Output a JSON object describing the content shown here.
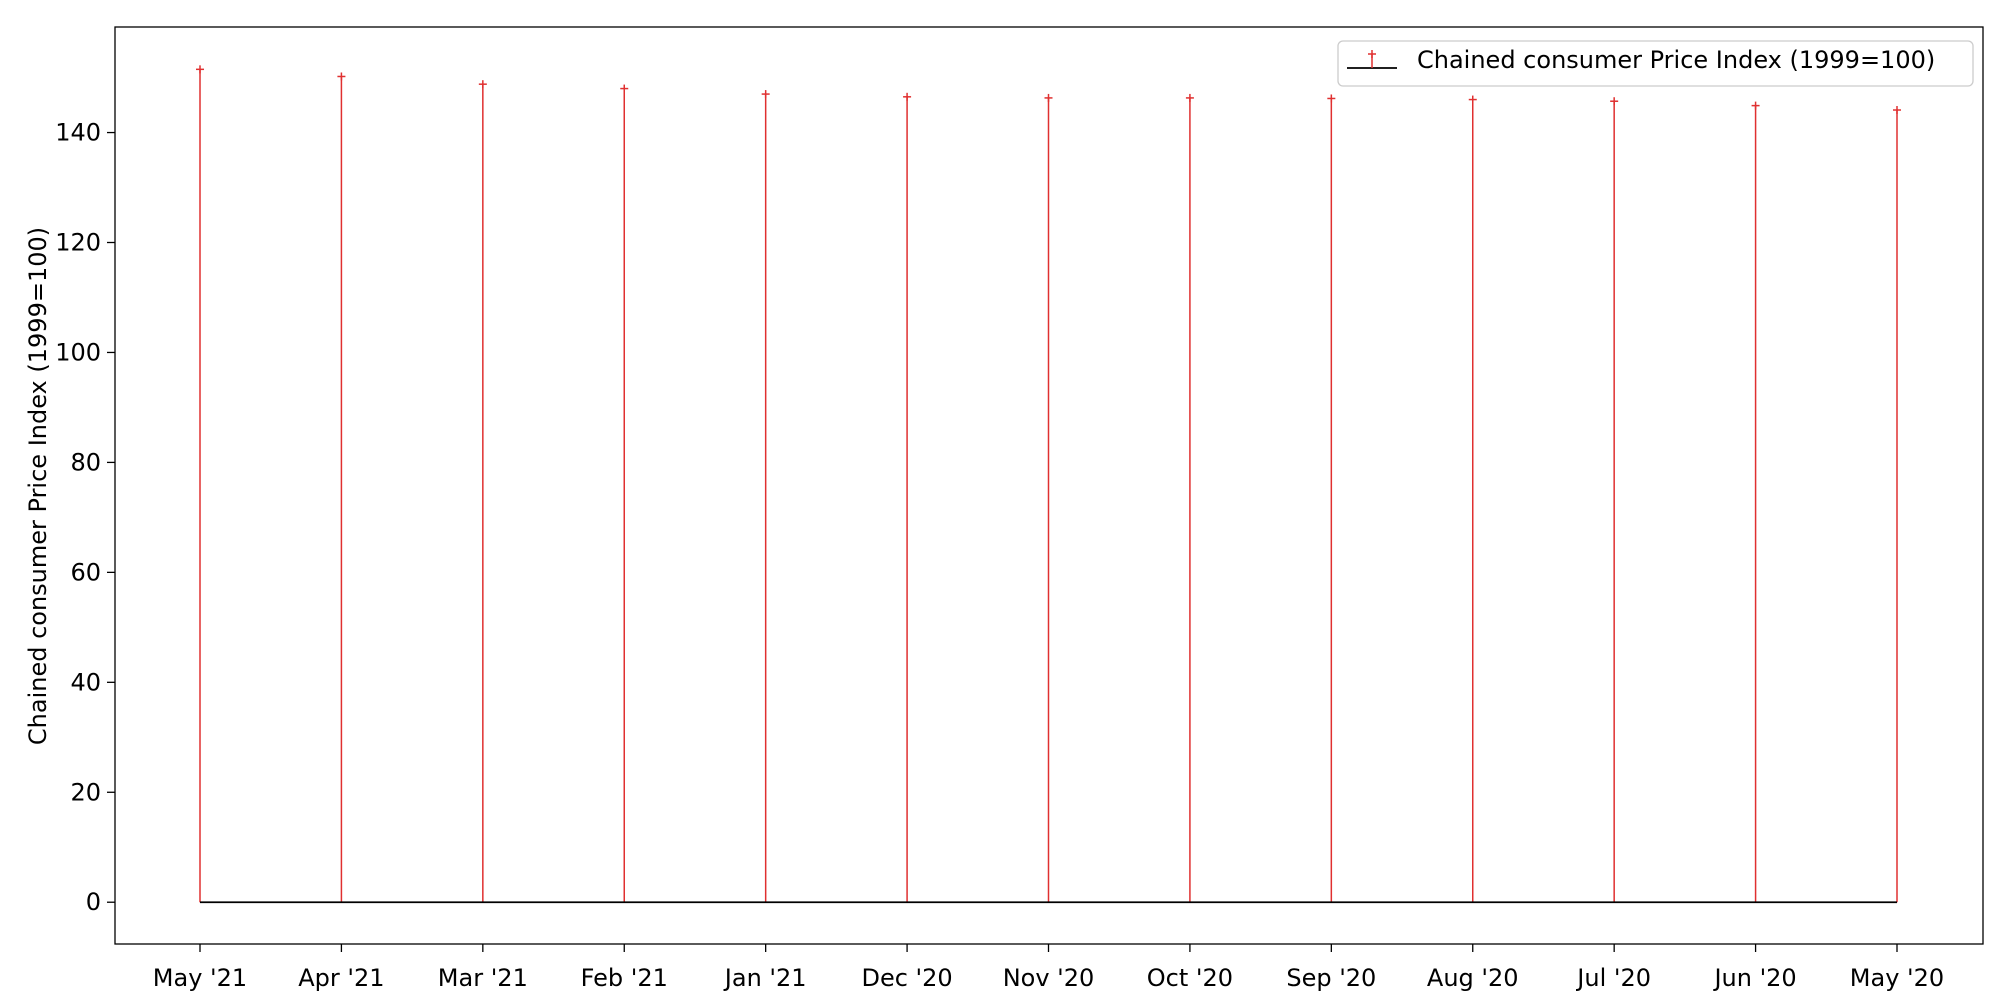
{
  "chart_data": {
    "type": "stem",
    "title": "",
    "xlabel": "",
    "ylabel": "Chained consumer Price Index (1999=100)",
    "categories": [
      "May '21",
      "Apr '21",
      "Mar '21",
      "Feb '21",
      "Jan '21",
      "Dec '20",
      "Nov '20",
      "Oct '20",
      "Sep '20",
      "Aug '20",
      "Jul '20",
      "Jun '20",
      "May '20"
    ],
    "series": [
      {
        "name": "Chained consumer Price Index (1999=100)",
        "values": [
          151.5,
          150.2,
          148.8,
          148.0,
          147.0,
          146.5,
          146.3,
          146.3,
          146.2,
          146.0,
          145.7,
          144.9,
          144.1
        ],
        "color": "#e03030",
        "marker": "+"
      }
    ],
    "baseline": 0,
    "baseline_color": "#000000",
    "ylim": [
      -7.6,
      159.2
    ],
    "yticks": [
      0,
      20,
      40,
      60,
      80,
      100,
      120,
      140
    ],
    "grid": false,
    "legend_position": "top-right"
  }
}
